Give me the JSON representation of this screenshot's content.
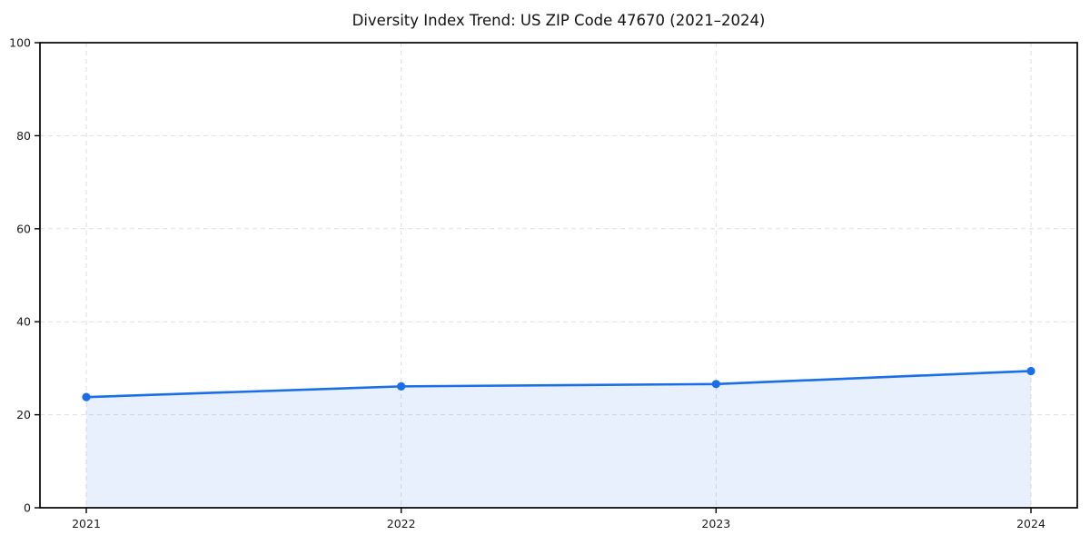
{
  "chart_data": {
    "type": "area",
    "title": "Diversity Index Trend: US ZIP Code 47670 (2021–2024)",
    "categories": [
      "2021",
      "2022",
      "2023",
      "2024"
    ],
    "series": [
      {
        "name": "Diversity Index",
        "values": [
          23.8,
          26.1,
          26.6,
          29.4
        ]
      }
    ],
    "xlabel": "",
    "ylabel": "",
    "ylim": [
      0,
      100
    ],
    "yticks": [
      0,
      20,
      40,
      60,
      80,
      100
    ],
    "grid": "dashed",
    "legend": "none",
    "colors": {
      "line": "#1a6fe8",
      "marker": "#1a6fe8",
      "area_fill": "rgba(26, 111, 232, 0.10)",
      "grid": "#dedede",
      "frame": "#000000",
      "tick": "#000000",
      "text": "#1a1a1a",
      "background": "#ffffff"
    }
  }
}
